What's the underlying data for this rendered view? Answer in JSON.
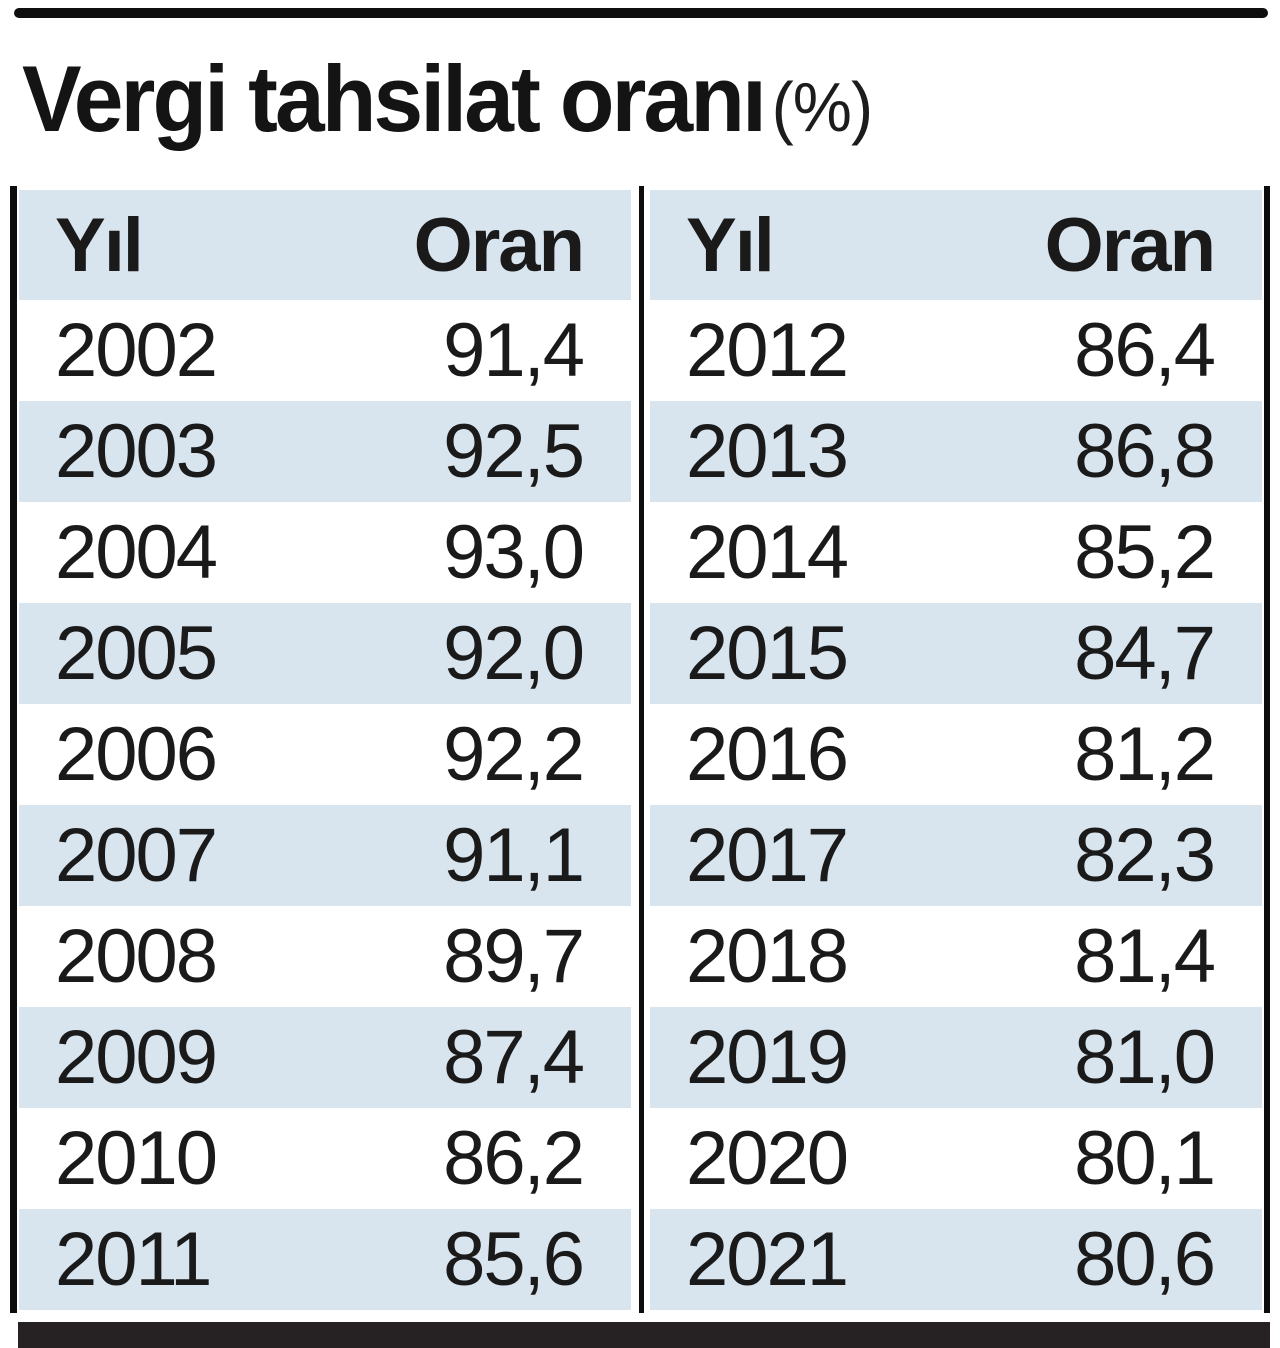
{
  "title": {
    "main": "Vergi tahsilat oranı",
    "unit": "(%)"
  },
  "table": {
    "headers": {
      "year": "Yıl",
      "rate": "Oran"
    },
    "left": [
      {
        "year": "2002",
        "rate": "91,4"
      },
      {
        "year": "2003",
        "rate": "92,5"
      },
      {
        "year": "2004",
        "rate": "93,0"
      },
      {
        "year": "2005",
        "rate": "92,0"
      },
      {
        "year": "2006",
        "rate": "92,2"
      },
      {
        "year": "2007",
        "rate": "91,1"
      },
      {
        "year": "2008",
        "rate": "89,7"
      },
      {
        "year": "2009",
        "rate": "87,4"
      },
      {
        "year": "2010",
        "rate": "86,2"
      },
      {
        "year": "2011",
        "rate": "85,6"
      }
    ],
    "right": [
      {
        "year": "2012",
        "rate": "86,4"
      },
      {
        "year": "2013",
        "rate": "86,8"
      },
      {
        "year": "2014",
        "rate": "85,2"
      },
      {
        "year": "2015",
        "rate": "84,7"
      },
      {
        "year": "2016",
        "rate": "81,2"
      },
      {
        "year": "2017",
        "rate": "82,3"
      },
      {
        "year": "2018",
        "rate": "81,4"
      },
      {
        "year": "2019",
        "rate": "81,0"
      },
      {
        "year": "2020",
        "rate": "80,1"
      },
      {
        "year": "2021",
        "rate": "80,6"
      }
    ]
  },
  "colors": {
    "stripe": "#d9e5ee",
    "rule": "#0f0f0f",
    "bottom_bar": "#262123",
    "text": "#1a1a1a"
  },
  "chart_data": {
    "type": "table",
    "title": "Vergi tahsilat oranı (%)",
    "columns": [
      "Yıl",
      "Oran"
    ],
    "x": [
      2002,
      2003,
      2004,
      2005,
      2006,
      2007,
      2008,
      2009,
      2010,
      2011,
      2012,
      2013,
      2014,
      2015,
      2016,
      2017,
      2018,
      2019,
      2020,
      2021
    ],
    "values": [
      91.4,
      92.5,
      93.0,
      92.0,
      92.2,
      91.1,
      89.7,
      87.4,
      86.2,
      85.6,
      86.4,
      86.8,
      85.2,
      84.7,
      81.2,
      82.3,
      81.4,
      81.0,
      80.1,
      80.6
    ],
    "value_unit": "%",
    "layout": "two-column split: years 2002-2011 left, 2012-2021 right, alternating row shading"
  }
}
